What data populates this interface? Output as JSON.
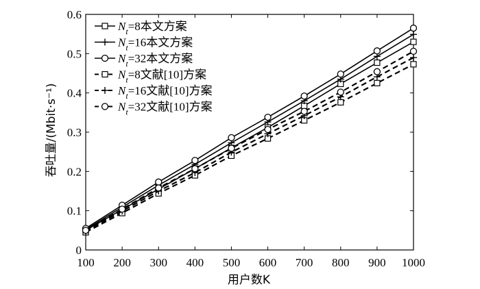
{
  "chart_data": {
    "type": "line",
    "xlabel": "用户数K",
    "ylabel": "吞吐量/(Mbit·s⁻¹)",
    "xlim": [
      100,
      1000
    ],
    "ylim": [
      0,
      0.6
    ],
    "xticks": [
      "100",
      "200",
      "300",
      "400",
      "500",
      "600",
      "700",
      "800",
      "900",
      "1000"
    ],
    "yticks": [
      "0",
      "0.1",
      "0.2",
      "0.3",
      "0.4",
      "0.5",
      "0.6"
    ],
    "grid": false,
    "legend_position": "top-left",
    "x": [
      100,
      200,
      300,
      400,
      500,
      600,
      700,
      800,
      900,
      1000
    ],
    "series": [
      {
        "name": "Nt=8本文方案",
        "legend_text": "=8本文方案",
        "style": "solid",
        "marker": "square",
        "values": [
          0.05,
          0.103,
          0.155,
          0.207,
          0.26,
          0.312,
          0.367,
          0.423,
          0.477,
          0.53
        ]
      },
      {
        "name": "Nt=16本文方案",
        "legend_text": "=16本文方案",
        "style": "solid",
        "marker": "plus",
        "values": [
          0.052,
          0.109,
          0.165,
          0.218,
          0.273,
          0.326,
          0.38,
          0.435,
          0.493,
          0.549
        ]
      },
      {
        "name": "Nt=32本文方案",
        "legend_text": "=32本文方案",
        "style": "solid",
        "marker": "circle",
        "values": [
          0.055,
          0.114,
          0.173,
          0.228,
          0.286,
          0.338,
          0.392,
          0.448,
          0.507,
          0.565
        ]
      },
      {
        "name": "Nt=8文献[10]方案",
        "legend_text": "=8文献[10]方案",
        "style": "dashed",
        "marker": "square",
        "values": [
          0.045,
          0.094,
          0.144,
          0.19,
          0.24,
          0.284,
          0.33,
          0.376,
          0.425,
          0.473
        ]
      },
      {
        "name": "Nt=16文献[10]方案",
        "legend_text": "=16文献[10]方案",
        "style": "dashed",
        "marker": "plus",
        "values": [
          0.048,
          0.099,
          0.15,
          0.197,
          0.249,
          0.296,
          0.342,
          0.39,
          0.441,
          0.49
        ]
      },
      {
        "name": "Nt=32文献[10]方案",
        "legend_text": "=32文献[10]方案",
        "style": "dashed",
        "marker": "circle",
        "values": [
          0.05,
          0.104,
          0.158,
          0.207,
          0.259,
          0.307,
          0.353,
          0.402,
          0.454,
          0.506
        ]
      }
    ],
    "legend_symbol": "N",
    "legend_subscript": "t"
  }
}
